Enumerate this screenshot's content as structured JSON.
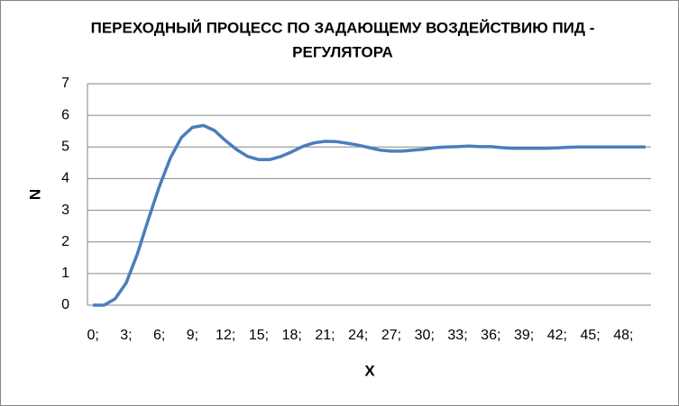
{
  "chart_data": {
    "type": "line",
    "title": [
      "ПЕРЕХОДНЫЙ ПРОЦЕСС ПО ЗАДАЮЩЕМУ ВОЗДЕЙСТВИЮ ПИД -",
      "РЕГУЛЯТОРА"
    ],
    "x_label": "X",
    "y_label": "N",
    "categories": [
      "0;",
      null,
      null,
      "3;",
      null,
      null,
      "6;",
      null,
      null,
      "9;",
      null,
      null,
      "12;",
      null,
      null,
      "15;",
      null,
      null,
      "18;",
      null,
      null,
      "21;",
      null,
      null,
      "24;",
      null,
      null,
      "27;",
      null,
      null,
      "30;",
      null,
      null,
      "33;",
      null,
      null,
      "36;",
      null,
      null,
      "39;",
      null,
      null,
      "42;",
      null,
      null,
      "45;",
      null,
      null,
      "48;",
      null,
      null
    ],
    "values": [
      0,
      0,
      0.2,
      0.7,
      1.6,
      2.7,
      3.75,
      4.65,
      5.3,
      5.62,
      5.68,
      5.52,
      5.2,
      4.92,
      4.7,
      4.6,
      4.6,
      4.7,
      4.85,
      5.02,
      5.13,
      5.18,
      5.17,
      5.12,
      5.06,
      4.98,
      4.9,
      4.87,
      4.87,
      4.9,
      4.93,
      4.98,
      5.0,
      5.01,
      5.03,
      5.01,
      5.01,
      4.98,
      4.96,
      4.96,
      4.96,
      4.96,
      4.97,
      4.99,
      5.0,
      5.0,
      5.0,
      5.0,
      5.0,
      5.0,
      5.0
    ],
    "color": "#4a7ebb",
    "ylim": [
      0,
      7
    ],
    "yticks": [
      0,
      1,
      2,
      3,
      4,
      5,
      6,
      7
    ],
    "grid": true
  }
}
